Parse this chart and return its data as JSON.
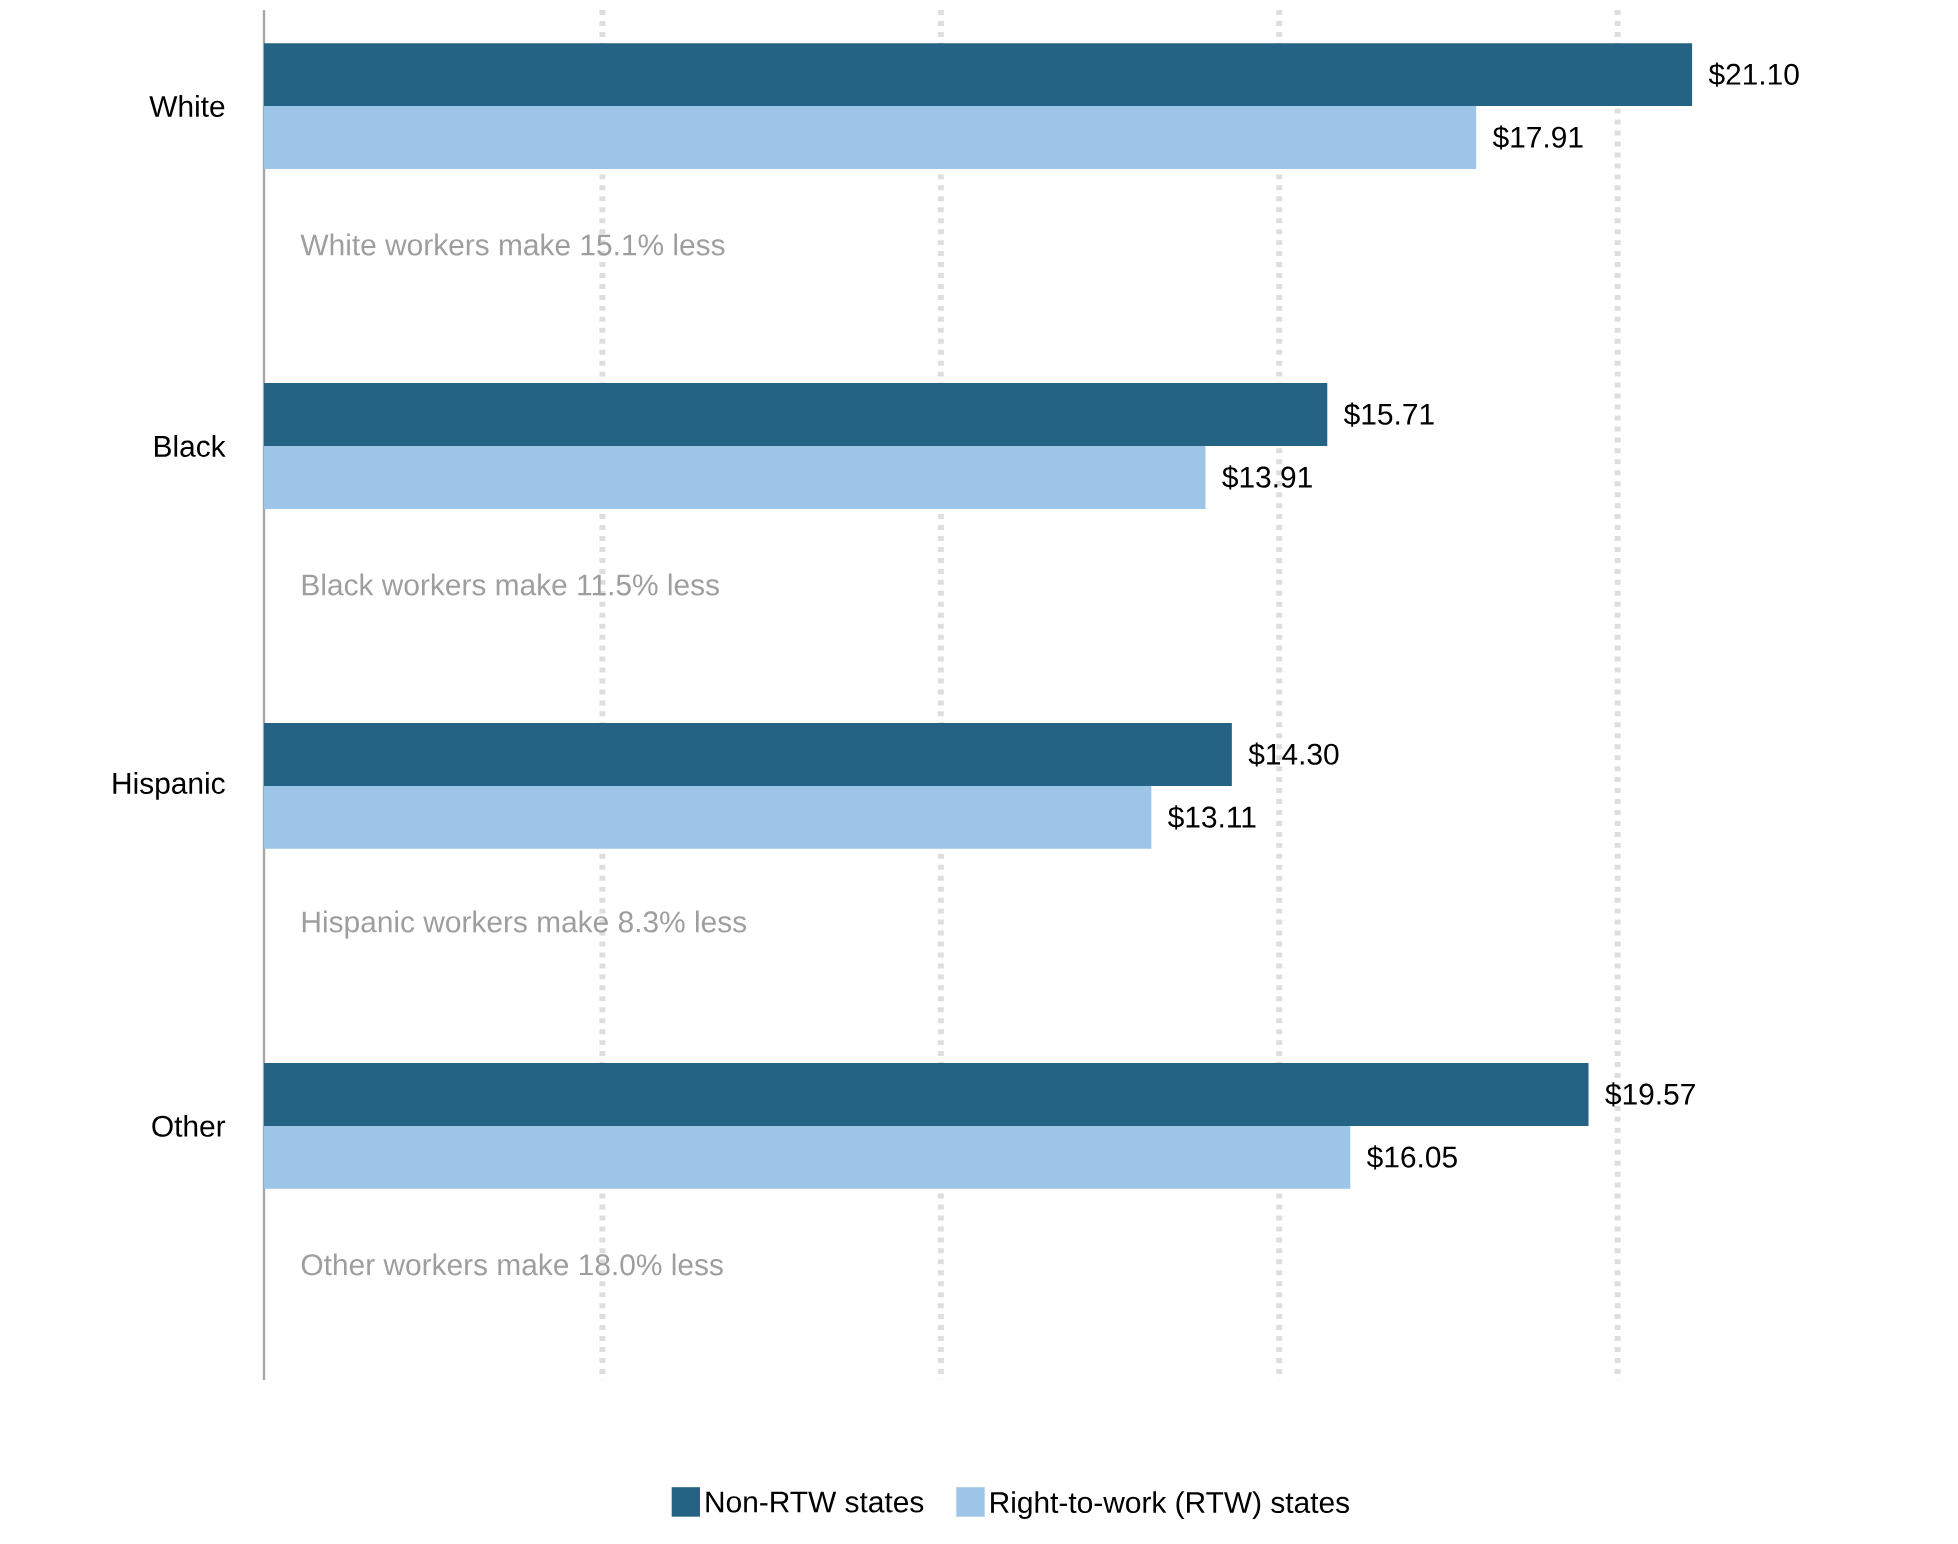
{
  "chart_data": {
    "type": "bar",
    "orientation": "horizontal",
    "categories": [
      "White",
      "Black",
      "Hispanic",
      "Other"
    ],
    "series": [
      {
        "name": "Non-RTW states",
        "color": "#256384",
        "values": [
          21.1,
          15.71,
          14.3,
          19.57
        ],
        "value_labels": [
          "$21.10",
          "$15.71",
          "$14.30",
          "$19.57"
        ]
      },
      {
        "name": "Right-to-work (RTW) states",
        "color": "#9dc5e8",
        "values": [
          17.91,
          13.91,
          13.11,
          16.05
        ],
        "value_labels": [
          "$17.91",
          "$13.91",
          "$13.11",
          "$16.05"
        ]
      }
    ],
    "annotations": [
      "White workers make 15.1% less",
      "Black workers make 11.5% less",
      "Hispanic workers make 8.3% less",
      "Other workers make 18.0% less"
    ],
    "xticks": [
      {
        "value": 5,
        "label": null
      },
      {
        "value": 10,
        "label": null
      },
      {
        "value": 15,
        "label": null
      },
      {
        "value": 20,
        "label": null
      }
    ],
    "grid": "x",
    "legend": "bottom",
    "tick_labels": "y"
  }
}
